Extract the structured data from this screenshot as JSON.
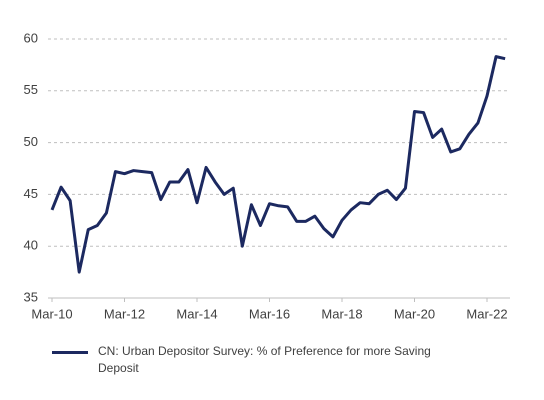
{
  "chart_data": {
    "type": "line",
    "categories": [
      "Mar-10",
      null,
      null,
      null,
      null,
      null,
      null,
      null,
      "Mar-12",
      null,
      null,
      null,
      null,
      null,
      null,
      null,
      "Mar-14",
      null,
      null,
      null,
      null,
      null,
      null,
      null,
      "Mar-16",
      null,
      null,
      null,
      null,
      null,
      null,
      null,
      "Mar-18",
      null,
      null,
      null,
      null,
      null,
      null,
      null,
      "Mar-20",
      null,
      null,
      null,
      null,
      null,
      null,
      null,
      "Mar-22",
      null,
      null
    ],
    "series": [
      {
        "name": "CN: Urban Depositor Survey: % of Preference for more Saving Deposit",
        "color": "#1c2960",
        "values": [
          43.5,
          45.7,
          44.4,
          37.5,
          41.6,
          42.0,
          43.2,
          47.2,
          47.0,
          47.3,
          47.2,
          47.1,
          44.5,
          46.2,
          46.2,
          47.4,
          44.2,
          47.6,
          46.2,
          45.0,
          45.6,
          40.0,
          44.0,
          42.0,
          44.1,
          43.9,
          43.8,
          42.4,
          42.4,
          42.9,
          41.7,
          40.9,
          42.5,
          43.5,
          44.2,
          44.1,
          45.0,
          45.4,
          44.5,
          45.6,
          53.0,
          52.9,
          50.5,
          51.3,
          49.1,
          49.4,
          50.8,
          51.9,
          54.5,
          58.3,
          58.1
        ]
      }
    ],
    "ylim": [
      35,
      60
    ],
    "yticks": [
      35,
      40,
      45,
      50,
      55,
      60
    ],
    "grid": true
  }
}
